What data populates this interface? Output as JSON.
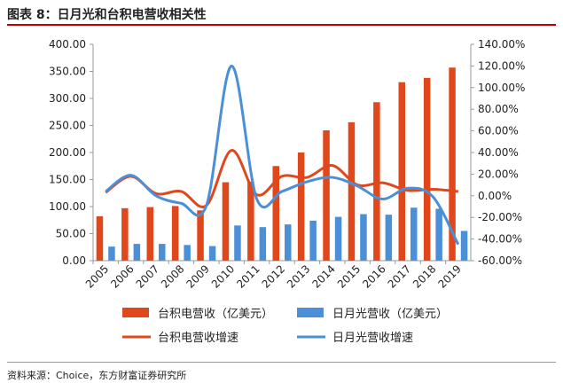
{
  "figure": {
    "title": "图表 8：日月光和台积电营收相关性",
    "source": "资料来源：Choice，东方财富证券研究所"
  },
  "colors": {
    "tsmc": "#e0481c",
    "ase": "#4a8fd8",
    "title_rule": "#c00000"
  },
  "chart_data": {
    "type": "bar",
    "categories": [
      "2005",
      "2006",
      "2007",
      "2008",
      "2009",
      "2010",
      "2011",
      "2012",
      "2013",
      "2014",
      "2015",
      "2016",
      "2017",
      "2018",
      "2019"
    ],
    "y_left": {
      "ylim": [
        0,
        400
      ],
      "ticks": [
        "0.00",
        "50.00",
        "100.00",
        "150.00",
        "200.00",
        "250.00",
        "300.00",
        "350.00",
        "400.00"
      ]
    },
    "y_right": {
      "ylim": [
        -60,
        140
      ],
      "ticks": [
        "-60.00%",
        "-40.00%",
        "-20.00%",
        "0.00%",
        "20.00%",
        "40.00%",
        "60.00%",
        "80.00%",
        "100.00%",
        "120.00%",
        "140.00%"
      ]
    },
    "series": [
      {
        "name": "台积电营收（亿美元）",
        "kind": "bar",
        "axis": "left",
        "color": "#e0481c",
        "values": [
          82,
          97,
          99,
          101,
          93,
          145,
          146,
          175,
          200,
          241,
          256,
          293,
          330,
          338,
          357
        ]
      },
      {
        "name": "日月光营收（亿美元）",
        "kind": "bar",
        "axis": "left",
        "color": "#4a8fd8",
        "values": [
          26,
          31,
          31,
          29,
          27,
          65,
          62,
          67,
          74,
          81,
          86,
          85,
          98,
          96,
          55
        ]
      },
      {
        "name": "台积电营收增速",
        "kind": "line",
        "axis": "right",
        "color": "#e0481c",
        "values": [
          3,
          18,
          2,
          4,
          -9,
          42,
          1,
          18,
          17,
          28,
          10,
          12,
          5,
          6,
          4
        ]
      },
      {
        "name": "日月光营收增速",
        "kind": "line",
        "axis": "right",
        "color": "#4a8fd8",
        "values": [
          4,
          19,
          0,
          -7,
          -9,
          120,
          -3,
          4,
          13,
          17,
          9,
          -3,
          7,
          -1,
          -45
        ]
      }
    ],
    "grid": false,
    "legend": "bottom"
  }
}
